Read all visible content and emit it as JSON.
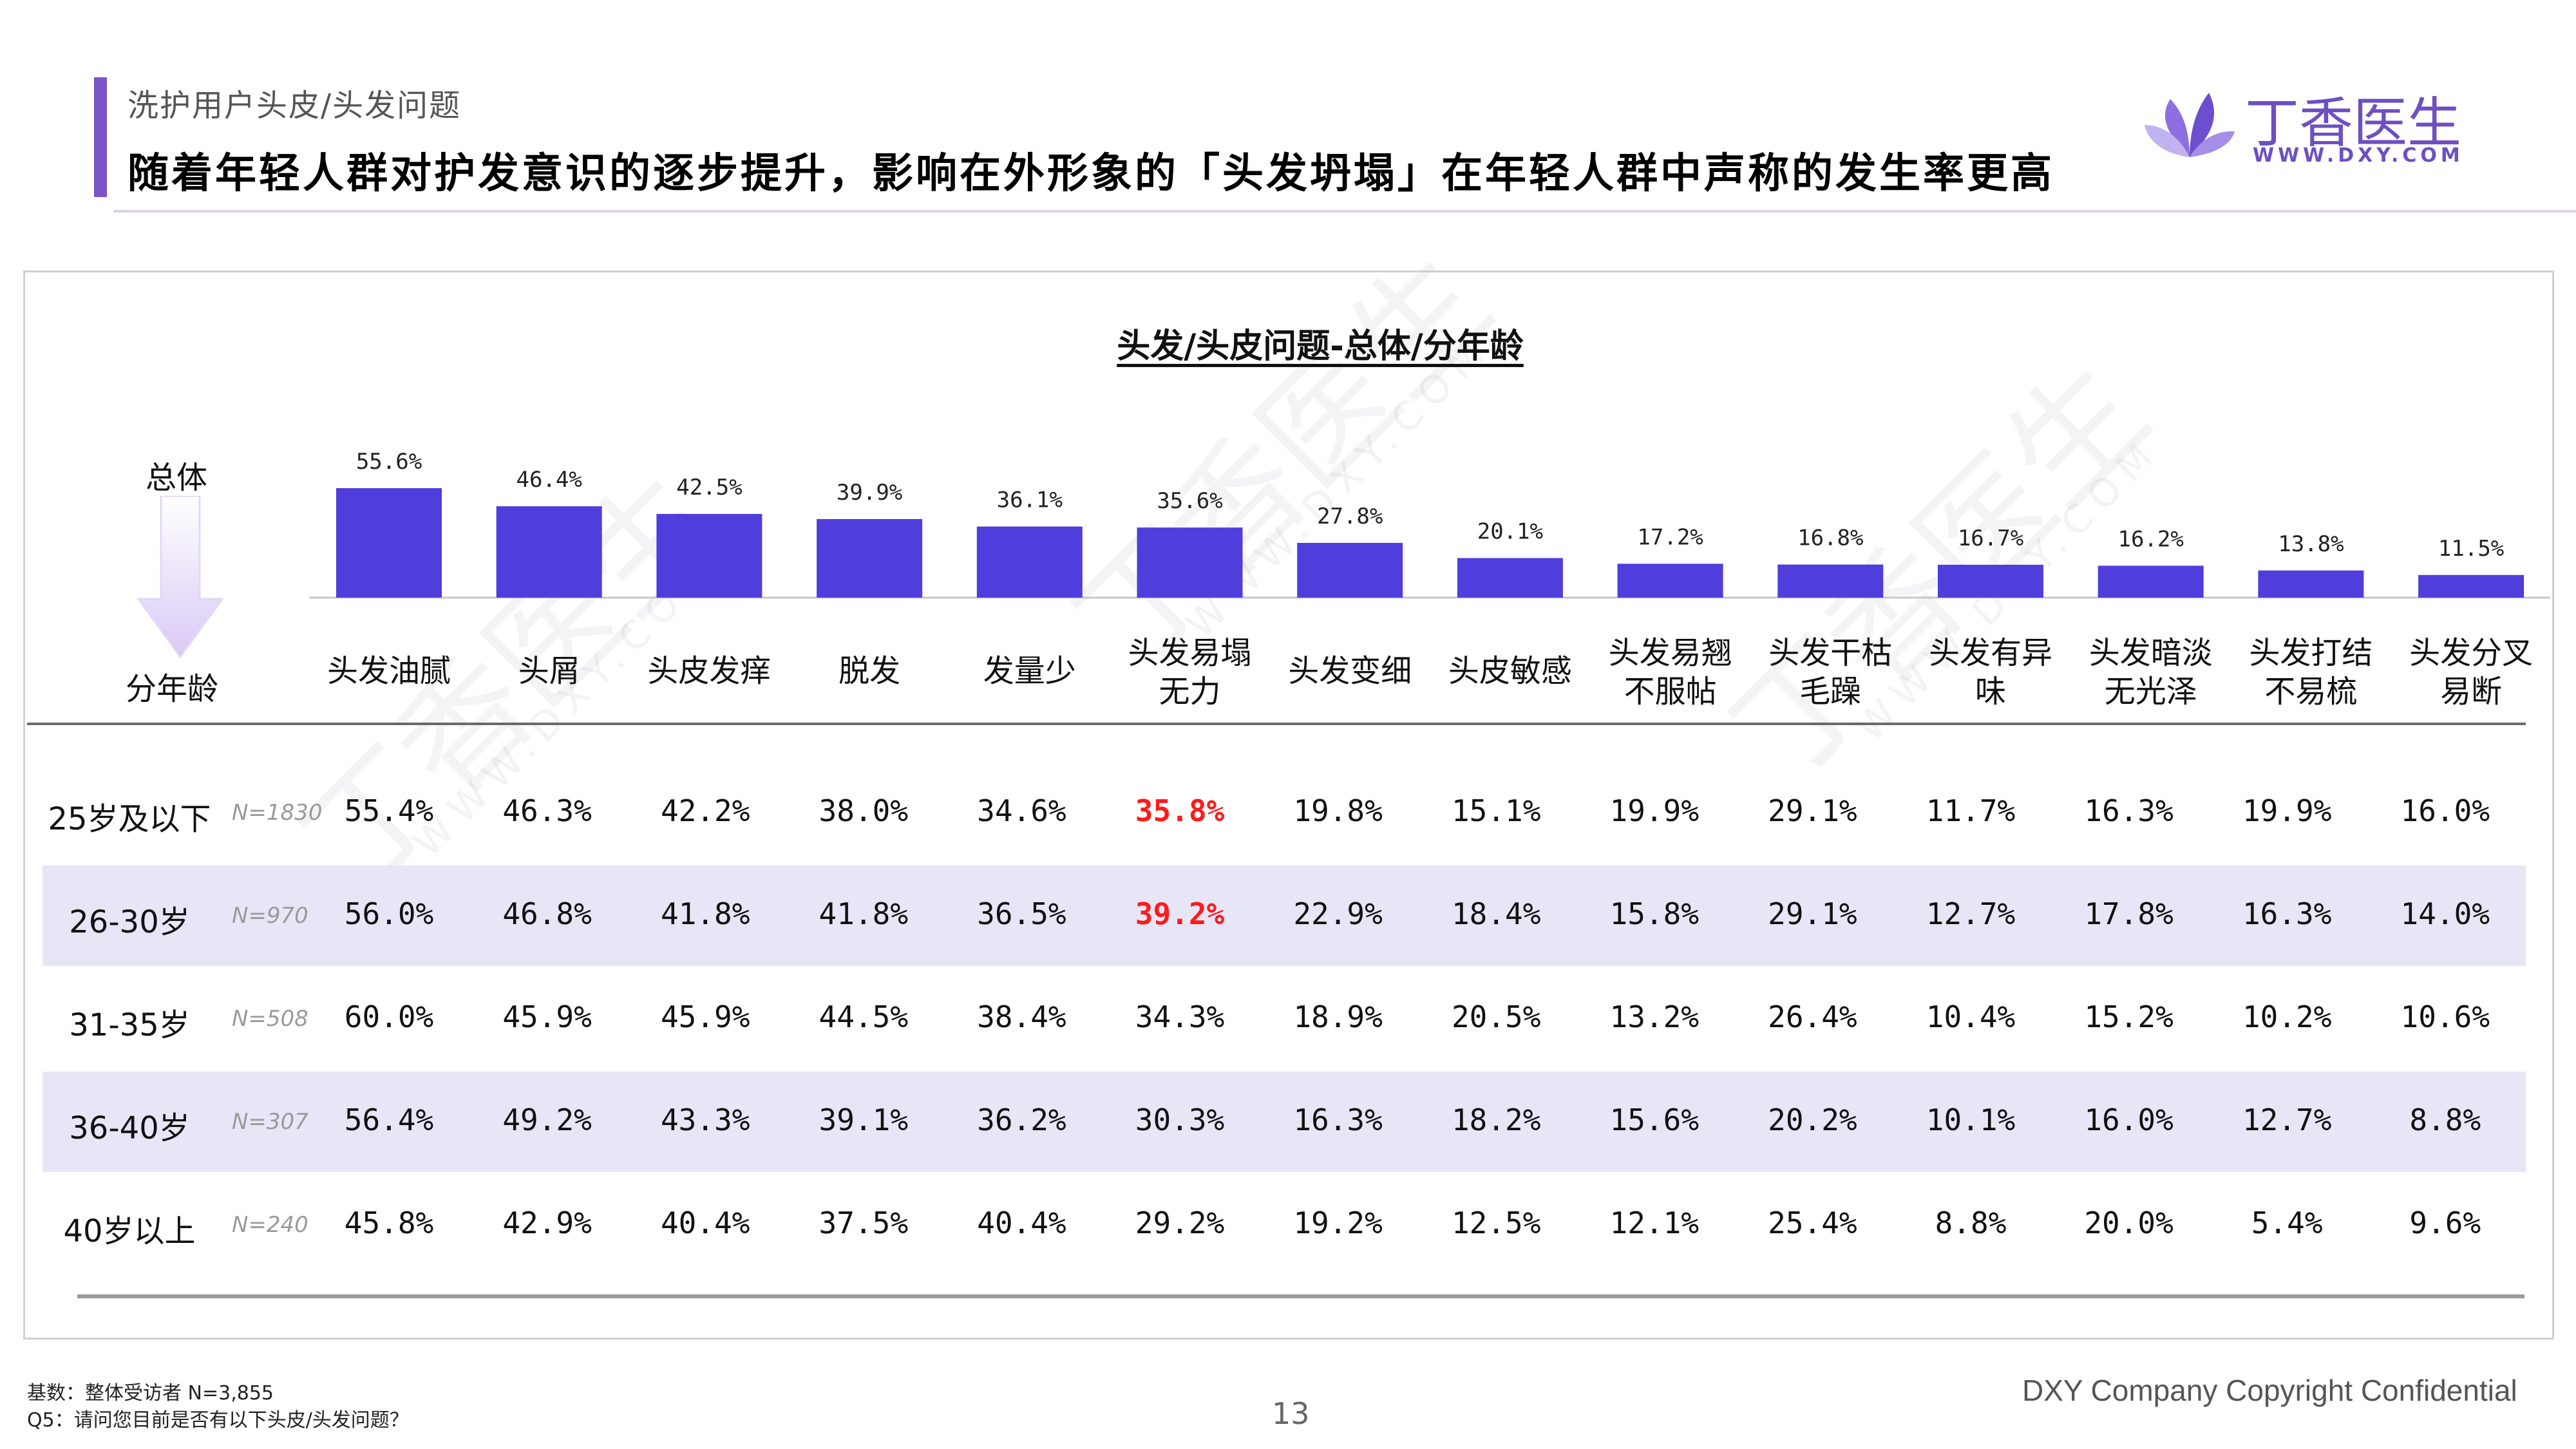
{
  "header": {
    "breadcrumb": "洗护用户头皮/头发问题",
    "title": "随着年轻人群对护发意识的逐步提升，影响在外形象的「头发坍塌」在年轻人群中声称的发生率更高",
    "logo_text": "丁香医生",
    "logo_url": "WWW.DXY.COM"
  },
  "labels": {
    "overall": "总体",
    "by_age": "分年龄"
  },
  "chart_data": {
    "type": "bar",
    "title": "头发/头皮问题-总体/分年龄",
    "categories": [
      "头发油腻",
      "头屑",
      "头皮发痒",
      "脱发",
      "发量少",
      "头发易塌\n无力",
      "头发变细",
      "头皮敏感",
      "头发易翘\n不服帖",
      "头发干枯\n毛躁",
      "头发有异\n味",
      "头发暗淡\n无光泽",
      "头发打结\n不易梳",
      "头发分叉\n易断"
    ],
    "values": [
      55.6,
      46.4,
      42.5,
      39.9,
      36.1,
      35.6,
      27.8,
      20.1,
      17.2,
      16.8,
      16.7,
      16.2,
      13.8,
      11.5
    ],
    "value_labels": [
      "55.6%",
      "46.4%",
      "42.5%",
      "39.9%",
      "36.1%",
      "35.6%",
      "27.8%",
      "20.1%",
      "17.2%",
      "16.8%",
      "16.7%",
      "16.2%",
      "13.8%",
      "11.5%"
    ],
    "unit": "%",
    "ylim": [
      0,
      60
    ],
    "grid": false,
    "color": "#4f3ddc",
    "age_table": {
      "rows": [
        {
          "label": "25岁及以下",
          "n": "N=1830",
          "values": [
            "55.4%",
            "46.3%",
            "42.2%",
            "38.0%",
            "34.6%",
            "35.8%",
            "19.8%",
            "15.1%",
            "19.9%",
            "29.1%",
            "11.7%",
            "16.3%",
            "19.9%",
            "16.0%"
          ],
          "highlight_index": 5,
          "shaded": false
        },
        {
          "label": "26-30岁",
          "n": "N=970",
          "values": [
            "56.0%",
            "46.8%",
            "41.8%",
            "41.8%",
            "36.5%",
            "39.2%",
            "22.9%",
            "18.4%",
            "15.8%",
            "29.1%",
            "12.7%",
            "17.8%",
            "16.3%",
            "14.0%"
          ],
          "highlight_index": 5,
          "shaded": true
        },
        {
          "label": "31-35岁",
          "n": "N=508",
          "values": [
            "60.0%",
            "45.9%",
            "45.9%",
            "44.5%",
            "38.4%",
            "34.3%",
            "18.9%",
            "20.5%",
            "13.2%",
            "26.4%",
            "10.4%",
            "15.2%",
            "10.2%",
            "10.6%"
          ],
          "highlight_index": -1,
          "shaded": false
        },
        {
          "label": "36-40岁",
          "n": "N=307",
          "values": [
            "56.4%",
            "49.2%",
            "43.3%",
            "39.1%",
            "36.2%",
            "30.3%",
            "16.3%",
            "18.2%",
            "15.6%",
            "20.2%",
            "10.1%",
            "16.0%",
            "12.7%",
            "8.8%"
          ],
          "highlight_index": -1,
          "shaded": true
        },
        {
          "label": "40岁以上",
          "n": "N=240",
          "values": [
            "45.8%",
            "42.9%",
            "40.4%",
            "37.5%",
            "40.4%",
            "29.2%",
            "19.2%",
            "12.5%",
            "12.1%",
            "25.4%",
            "8.8%",
            "20.0%",
            "5.4%",
            "9.6%"
          ],
          "highlight_index": -1,
          "shaded": false
        }
      ],
      "highlight_color": "#ff1a1a",
      "shade_color": "#e7e6f7"
    }
  },
  "footer": {
    "base": "基数：整体受访者 N=3,855",
    "question": "Q5：请问您目前是否有以下头皮/头发问题？",
    "page_number": "13",
    "copyright": "DXY Company Copyright Confidential"
  }
}
